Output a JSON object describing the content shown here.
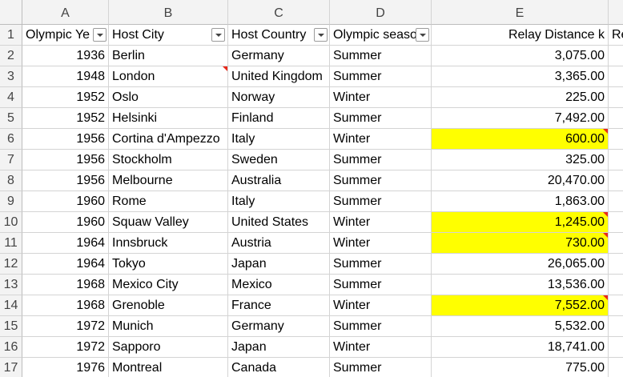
{
  "columns": [
    "A",
    "B",
    "C",
    "D",
    "E"
  ],
  "headers": {
    "a": "Olympic Ye",
    "b": "Host City",
    "c": "Host Country",
    "d": "Olympic seaso",
    "e": "Relay Distance k",
    "f": "Re"
  },
  "rows": [
    {
      "n": "2",
      "year": "1936",
      "city": "Berlin",
      "country": "Germany",
      "season": "Summer",
      "dist": "3,075.00"
    },
    {
      "n": "3",
      "year": "1948",
      "city": "London",
      "country": "United Kingdom",
      "season": "Summer",
      "dist": "3,365.00"
    },
    {
      "n": "4",
      "year": "1952",
      "city": "Oslo",
      "country": "Norway",
      "season": "Winter",
      "dist": "225.00"
    },
    {
      "n": "5",
      "year": "1952",
      "city": "Helsinki",
      "country": "Finland",
      "season": "Summer",
      "dist": "7,492.00"
    },
    {
      "n": "6",
      "year": "1956",
      "city": "Cortina d'Ampezzo",
      "country": "Italy",
      "season": "Winter",
      "dist": "600.00"
    },
    {
      "n": "7",
      "year": "1956",
      "city": "Stockholm",
      "country": "Sweden",
      "season": "Summer",
      "dist": "325.00"
    },
    {
      "n": "8",
      "year": "1956",
      "city": "Melbourne",
      "country": "Australia",
      "season": "Summer",
      "dist": "20,470.00"
    },
    {
      "n": "9",
      "year": "1960",
      "city": "Rome",
      "country": "Italy",
      "season": "Summer",
      "dist": "1,863.00"
    },
    {
      "n": "10",
      "year": "1960",
      "city": "Squaw Valley",
      "country": "United States",
      "season": "Winter",
      "dist": "1,245.00"
    },
    {
      "n": "11",
      "year": "1964",
      "city": "Innsbruck",
      "country": "Austria",
      "season": "Winter",
      "dist": "730.00"
    },
    {
      "n": "12",
      "year": "1964",
      "city": "Tokyo",
      "country": "Japan",
      "season": "Summer",
      "dist": "26,065.00"
    },
    {
      "n": "13",
      "year": "1968",
      "city": "Mexico City",
      "country": "Mexico",
      "season": "Summer",
      "dist": "13,536.00"
    },
    {
      "n": "14",
      "year": "1968",
      "city": "Grenoble",
      "country": "France",
      "season": "Winter",
      "dist": "7,552.00"
    },
    {
      "n": "15",
      "year": "1972",
      "city": "Munich",
      "country": "Germany",
      "season": "Summer",
      "dist": "5,532.00"
    },
    {
      "n": "16",
      "year": "1972",
      "city": "Sapporo",
      "country": "Japan",
      "season": "Winter",
      "dist": "18,741.00"
    },
    {
      "n": "17",
      "year": "1976",
      "city": "Montreal",
      "country": "Canada",
      "season": "Summer",
      "dist": "775.00"
    }
  ],
  "highlight_color": "#ffff00",
  "comment_color": "#e8281a",
  "highlighted_rows": [
    "6",
    "10",
    "11",
    "14"
  ],
  "comment_city_rows": [
    "3"
  ],
  "comment_dist_rows": [
    "6",
    "10",
    "11",
    "14"
  ]
}
